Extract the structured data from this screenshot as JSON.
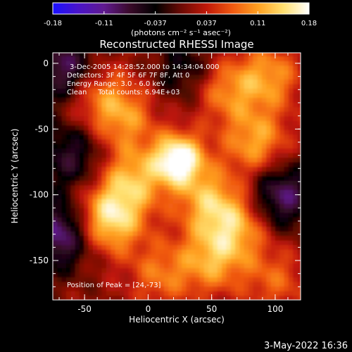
{
  "colorbar": {
    "ticks": [
      "-0.18",
      "-0.11",
      "-0.037",
      "0.037",
      "0.11",
      "0.18"
    ],
    "units_label": "(photons cm⁻² s⁻¹ asec⁻²)",
    "colormap_stops": [
      "#1a10ff",
      "#4a14c8",
      "#601a90",
      "#3a0a2a",
      "#000000",
      "#6b0a04",
      "#c01808",
      "#f05810",
      "#ffa020",
      "#ffe070",
      "#ffffff"
    ]
  },
  "plot": {
    "title": "Reconstructed RHESSI Image",
    "annotations": [
      "3-Dec-2005 14:28:52.000 to 14:34:04.000",
      "Detectors: 3F 4F 5F 6F 7F 8F, Att 0",
      "Energy Range: 3.0 - 6.0 keV",
      "Clean     Total counts: 6.94E+03"
    ],
    "peak_label": "Position of Peak = [24,-73]"
  },
  "chart_data": {
    "type": "heatmap",
    "title": "Reconstructed RHESSI Image",
    "xlabel": "Heliocentric X (arcsec)",
    "ylabel": "Heliocentric Y (arcsec)",
    "xlim": [
      -75,
      120
    ],
    "ylim": [
      -180,
      8
    ],
    "xticks": [
      -50,
      0,
      50,
      100
    ],
    "yticks": [
      0,
      -50,
      -100,
      -150
    ],
    "colorbar_range": [
      -0.18,
      0.18
    ],
    "peak": [
      24,
      -73
    ],
    "sources": [
      {
        "x": 24,
        "y": -73,
        "amplitude": 0.18
      },
      {
        "x": -30,
        "y": -118,
        "amplitude": 0.14
      },
      {
        "x": -12,
        "y": -88,
        "amplitude": 0.1
      },
      {
        "x": -20,
        "y": -40,
        "amplitude": 0.09
      },
      {
        "x": 48,
        "y": -105,
        "amplitude": 0.1
      },
      {
        "x": 70,
        "y": -125,
        "amplitude": 0.09
      },
      {
        "x": 85,
        "y": -60,
        "amplitude": 0.1
      },
      {
        "x": 95,
        "y": -10,
        "amplitude": 0.09
      },
      {
        "x": 60,
        "y": -20,
        "amplitude": 0.08
      },
      {
        "x": 50,
        "y": -150,
        "amplitude": 0.09
      },
      {
        "x": 10,
        "y": -160,
        "amplitude": 0.07
      },
      {
        "x": -45,
        "y": -20,
        "amplitude": 0.07
      },
      {
        "x": 100,
        "y": -165,
        "amplitude": 0.06
      }
    ],
    "negative_regions": [
      {
        "x": -65,
        "y": -5,
        "amplitude": -0.12
      },
      {
        "x": -70,
        "y": -130,
        "amplitude": -0.12
      },
      {
        "x": -60,
        "y": -70,
        "amplitude": -0.08
      },
      {
        "x": 105,
        "y": -100,
        "amplitude": -0.11
      },
      {
        "x": 30,
        "y": -5,
        "amplitude": -0.06
      }
    ]
  },
  "footer": {
    "date": "3-May-2022 16:36"
  }
}
